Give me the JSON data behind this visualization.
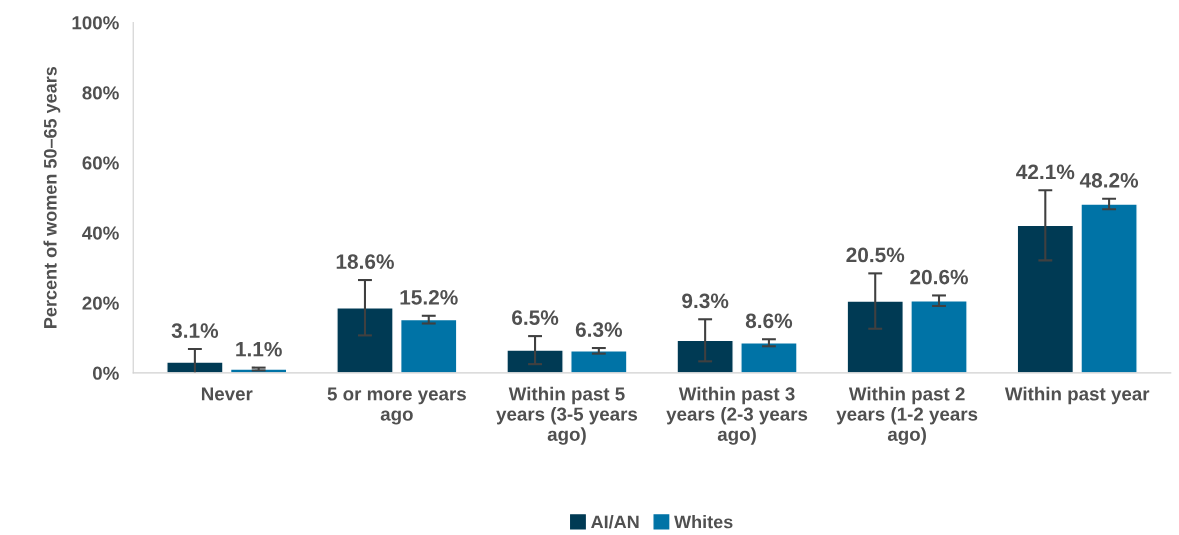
{
  "chart_data": {
    "type": "bar",
    "ylabel": "Percent of women 50–65 years",
    "categories": [
      "Never",
      "5 or more years\nago",
      "Within past 5\nyears (3-5 years\nago)",
      "Within past 3\nyears (2-3 years\nago)",
      "Within past 2\nyears (1-2 years\nago)",
      "Within past year"
    ],
    "series": [
      {
        "name": "AI/AN",
        "color": "#003a54",
        "values": [
          3.1,
          18.6,
          6.5,
          9.3,
          20.5,
          42.1
        ],
        "errors": [
          3.7,
          7.9,
          4.0,
          6.0,
          7.9,
          10.0
        ],
        "value_labels": [
          "3.1%",
          "18.6%",
          "6.5%",
          "9.3%",
          "20.5%",
          "42.1%"
        ]
      },
      {
        "name": "Whites",
        "color": "#0073a6",
        "values": [
          1.1,
          15.2,
          6.3,
          8.6,
          20.6,
          48.2
        ],
        "errors": [
          0.4,
          1.1,
          0.8,
          1.0,
          1.5,
          1.5
        ],
        "value_labels": [
          "1.1%",
          "15.2%",
          "6.3%",
          "8.6%",
          "20.6%",
          "48.2%"
        ]
      }
    ],
    "ylim": [
      0,
      100
    ],
    "yticks": [
      {
        "value": 0,
        "label": "0%"
      },
      {
        "value": 20,
        "label": "20%"
      },
      {
        "value": 40,
        "label": "40%"
      },
      {
        "value": 60,
        "label": "60%"
      },
      {
        "value": 80,
        "label": "80%"
      },
      {
        "value": 100,
        "label": "100%"
      }
    ],
    "grid": false,
    "legend": "bottom"
  }
}
